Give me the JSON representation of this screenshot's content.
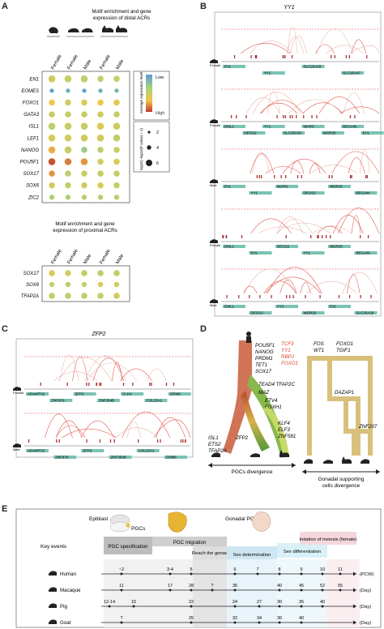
{
  "panels": {
    "A": "A",
    "B": "B",
    "C": "C",
    "D": "D",
    "E": "E"
  },
  "panelA": {
    "distal_title_1": "Motif enrichment and gene",
    "distal_title_2": "expression of distal ACRs",
    "proximal_title_1": "Motif enrichment and gene",
    "proximal_title_2": "expression of proximal ACRs",
    "columns": [
      "Female",
      "Female",
      "Male",
      "Female",
      "Male"
    ],
    "distal_genes": [
      "EN1",
      "EOMES",
      "FOXO1",
      "GATA3",
      "ISL1",
      "LEF1",
      "NANOG",
      "POU5F1",
      "SOX17",
      "SOX6",
      "ZIC2"
    ],
    "proximal_genes": [
      "SOX17",
      "SOX6",
      "TFAP2A"
    ],
    "legend_title": "Average expression level",
    "legend_low": "Low",
    "legend_high": "High",
    "size_title": "log10(−log10(P value) + 1)",
    "size_values": [
      "2",
      "4",
      "6"
    ],
    "distal_matrix": [
      [
        0.55,
        0.5,
        0.45,
        0.45,
        0.5
      ],
      [
        0.05,
        0.1,
        0.05,
        0.1,
        0.15
      ],
      [
        0.7,
        0.55,
        0.6,
        0.7,
        0.65
      ],
      [
        0.5,
        0.5,
        0.5,
        0.55,
        0.5
      ],
      [
        0.45,
        0.5,
        0.5,
        0.6,
        0.55
      ],
      [
        0.6,
        0.55,
        0.55,
        0.55,
        0.45
      ],
      [
        0.75,
        0.5,
        0.3,
        0.45,
        0.5
      ],
      [
        0.95,
        0.85,
        0.8,
        0.55,
        0.6
      ],
      [
        0.8,
        0.45,
        0.5,
        0.5,
        0.5
      ],
      [
        0.55,
        0.5,
        0.55,
        0.6,
        0.5
      ],
      [
        0.4,
        0.4,
        0.45,
        0.45,
        0.45
      ]
    ],
    "distal_sizes": [
      [
        6,
        6,
        6,
        5,
        5
      ],
      [
        3,
        3,
        3,
        3,
        3
      ],
      [
        5,
        5,
        5,
        5,
        5
      ],
      [
        5,
        5,
        5,
        5,
        5
      ],
      [
        6,
        6,
        6,
        6,
        6
      ],
      [
        6,
        6,
        6,
        6,
        6
      ],
      [
        6,
        6,
        5,
        5,
        5
      ],
      [
        6,
        6,
        6,
        5,
        5
      ],
      [
        5,
        5,
        5,
        5,
        5
      ],
      [
        5,
        5,
        5,
        5,
        5
      ],
      [
        4,
        4,
        4,
        4,
        4
      ]
    ],
    "proximal_matrix": [
      [
        0.6,
        0.55,
        0.5,
        0.45,
        0.5
      ],
      [
        0.5,
        0.45,
        0.5,
        0.6,
        0.55
      ],
      [
        0.5,
        0.45,
        0.45,
        0.5,
        0.55
      ]
    ],
    "proximal_sizes": [
      [
        5,
        5,
        5,
        5,
        5
      ],
      [
        4,
        4,
        4,
        4,
        4
      ],
      [
        5,
        5,
        5,
        5,
        5
      ]
    ]
  },
  "panelB": {
    "title": "YY1",
    "tracks": [
      {
        "label": "Female",
        "genes": [
          "EVL",
          "YY1",
          "SLC25A29",
          "SLC25A47"
        ]
      },
      {
        "label": "Female",
        "genes": [
          "EML1",
          "DEGS2",
          "YY1",
          "SLC25A29",
          "WARS",
          "WDR25",
          "BEGAIN",
          "EVL"
        ]
      },
      {
        "label": "Male",
        "genes": [
          "EVL",
          "YY1",
          "WARS",
          "DEGS2",
          "WDR25",
          "BEGAIN"
        ]
      },
      {
        "label": "Female",
        "genes": [
          "EML1",
          "EVL",
          "DEGS2",
          "YY1",
          "WDR25",
          "BEGAIN"
        ]
      },
      {
        "label": "Male",
        "genes": [
          "EML1",
          "DEGS2",
          "YY1",
          "WDR25",
          "EVL",
          "SLC25A29"
        ]
      }
    ]
  },
  "panelC": {
    "title": "ZFP2",
    "tracks": [
      {
        "label": "Female",
        "genes": [
          "ADAMTS2",
          "ZNF879",
          "ZFP2",
          "ZNF354B",
          "CLK4",
          "COL23A1",
          "GRM6"
        ]
      },
      {
        "label": "Male",
        "genes": [
          "ADAMTS2",
          "ZNF879",
          "ZFP2",
          "ZNF354B",
          "COL23A1",
          "GRM6"
        ]
      }
    ]
  },
  "panelD": {
    "left_tfs": [
      "POU5F1",
      "NANOG",
      "PRDM1",
      "TET1",
      "SOX17"
    ],
    "red_tfs": [
      "TCF3",
      "YY1",
      "RBPJ",
      "FOXO1"
    ],
    "mid_tfs": [
      "TEAD4 TFAP2C",
      "MAZ",
      "ETV4",
      "FOXH1"
    ],
    "bottom_left": [
      "ISL1",
      "ETS2",
      "TFAP2A"
    ],
    "zfp2": "ZFP2",
    "bottom_right": [
      "KLF4",
      "ELF3",
      "ZNF581"
    ],
    "pgc_caption": "PGCs divergence",
    "gon_tfs_left": [
      "FOS",
      "WT1"
    ],
    "gon_tfs_right": [
      "FOXO1",
      "TGIF1"
    ],
    "dazap1": "DAZAP1",
    "znf207": "ZNF207",
    "gon_caption_1": "Gonadal supporting",
    "gon_caption_2": "cells divergence"
  },
  "panelE": {
    "epiblast": "Epiblast",
    "pgcs": "PGCs",
    "gonadal": "Gonadal PGCs",
    "key_events": "Key events",
    "stages": [
      "PGC specification",
      "PGC migration",
      "Reach the gonad",
      "Sex determination",
      "Sex differentiation",
      "Initation of meiosis (female)"
    ],
    "species": [
      {
        "name": "Human",
        "unit": "(PCW)",
        "marks": [
          "~2",
          "3-4",
          "5",
          "6",
          "7",
          "8",
          "9",
          "10",
          "11"
        ]
      },
      {
        "name": "Macaque",
        "unit": "(Day)",
        "marks": [
          "11",
          "17",
          "28",
          "?",
          "35",
          "40",
          "45",
          "52",
          "55"
        ]
      },
      {
        "name": "Pig",
        "unit": "(Day)",
        "marks": [
          "12-14",
          "15",
          "22",
          "24",
          "27",
          "30",
          "35",
          "40"
        ]
      },
      {
        "name": "Goat",
        "unit": "(Day)",
        "marks": [
          "?",
          "25",
          "32",
          "34",
          "36",
          "40"
        ]
      }
    ]
  }
}
